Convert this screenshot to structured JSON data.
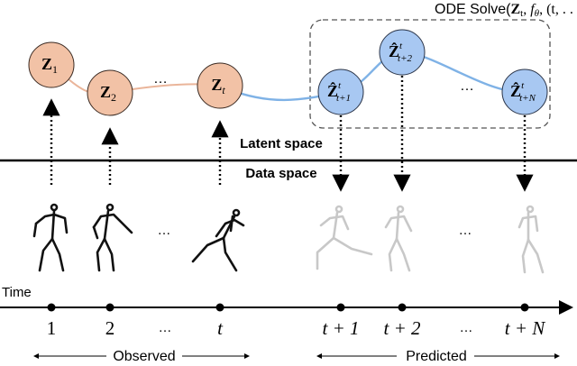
{
  "title": [
    "ODE Solve(",
    "Z",
    "t",
    ", ",
    "f",
    "θ",
    ", (t, . . . , t + N))"
  ],
  "nodes": [
    {
      "symbol": "Z",
      "subscript": "1",
      "kind": "observed"
    },
    {
      "symbol": "Z",
      "subscript": "2",
      "kind": "observed"
    },
    {
      "symbol": "Z",
      "subscript": "t",
      "kind": "observed"
    },
    {
      "symbol": "Ẑ",
      "superscript": "t",
      "subscript": "t+1",
      "kind": "predicted"
    },
    {
      "symbol": "Ẑ",
      "superscript": "t",
      "subscript": "t+2",
      "kind": "predicted"
    },
    {
      "symbol": "Ẑ",
      "superscript": "t",
      "subscript": "t+N",
      "kind": "predicted"
    }
  ],
  "latent_ellipsis": [
    "…",
    "…"
  ],
  "latent_space_label": "Latent space",
  "data_space_label": "Data space",
  "pose_ellipsis": [
    "…",
    "…"
  ],
  "time_label": "Time",
  "time_ticks": [
    "1",
    "2",
    "…",
    "t",
    "t + 1",
    "t + 2",
    "…",
    "t + N"
  ],
  "observed_label": "Observed",
  "predicted_label": "Predicted"
}
